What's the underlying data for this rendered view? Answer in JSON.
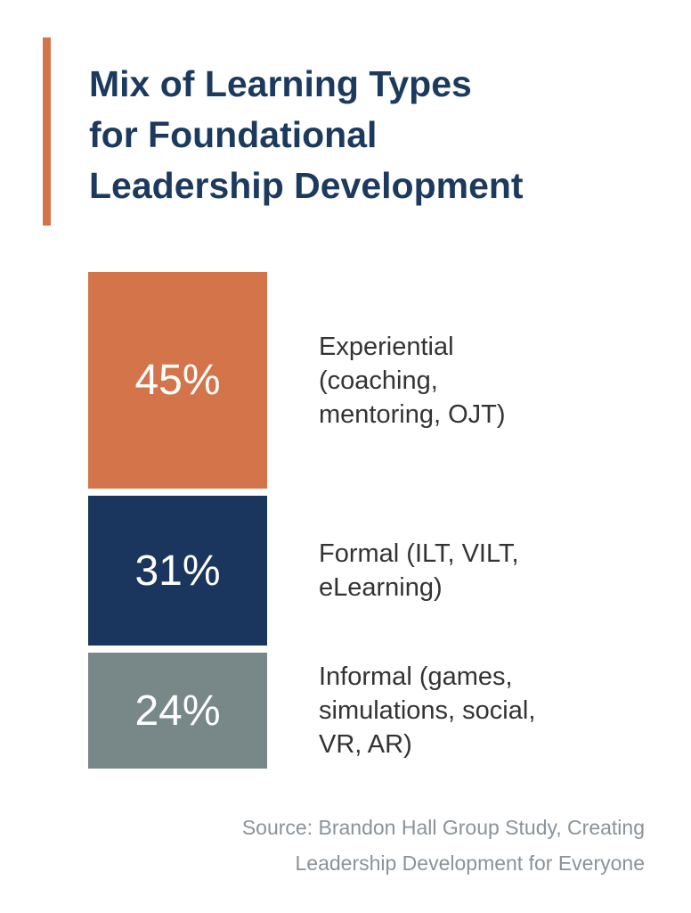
{
  "colors": {
    "accent": "#d4744a"
  },
  "chart_data": {
    "type": "bar",
    "stacked": true,
    "title": "Mix of Learning Types for Foundational Leadership Development",
    "title_lines": [
      "Mix of Learning Types",
      "for Foundational",
      "Leadership Development"
    ],
    "categories": [
      "Experiential (coaching, mentoring, OJT)",
      "Formal (ILT, VILT, eLearning)",
      "Informal (games, simulations, social, VR, AR)"
    ],
    "label_lines": [
      [
        "Experiential",
        "(coaching,",
        "mentoring, OJT)"
      ],
      [
        "Formal (ILT, VILT,",
        "eLearning)"
      ],
      [
        "Informal (games,",
        "simulations, social,",
        "VR, AR)"
      ]
    ],
    "values": [
      45,
      31,
      24
    ],
    "data_labels": [
      "45%",
      "31%",
      "24%"
    ],
    "colors": [
      "#d4744a",
      "#1a365e",
      "#788788"
    ],
    "unit": "%",
    "source_lines": [
      "Source: Brandon Hall Group Study, Creating",
      "Leadership Development for Everyone"
    ]
  }
}
